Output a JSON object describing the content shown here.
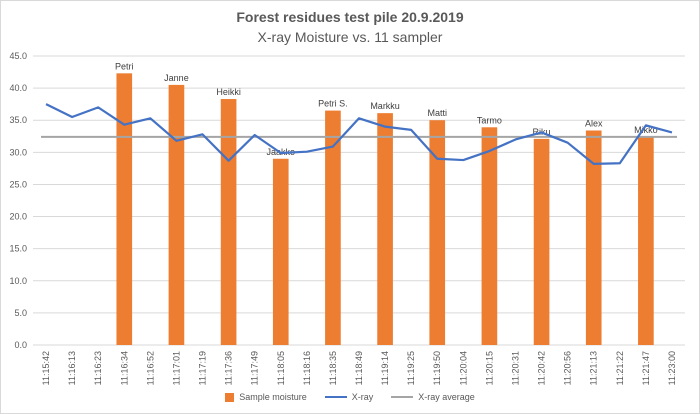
{
  "chart_data": {
    "type": "bar",
    "title": "Forest residues test pile 20.9.2019",
    "subtitle": "X-ray Moisture vs. 11 sampler",
    "categories": [
      "11:15:42",
      "11:16:13",
      "11:16:23",
      "11:16:34",
      "11:16:52",
      "11:17:01",
      "11:17:19",
      "11:17:36",
      "11:17:49",
      "11:18:05",
      "11:18:16",
      "11:18:35",
      "11:18:49",
      "11:19:14",
      "11:19:25",
      "11:19:50",
      "11:20:04",
      "11:20:15",
      "11:20:31",
      "11:20:42",
      "11:20:56",
      "11:21:13",
      "11:21:22",
      "11:21:47",
      "11:23:00"
    ],
    "ylim": [
      0,
      45
    ],
    "yticks": [
      0,
      5,
      10,
      15,
      20,
      25,
      30,
      35,
      40,
      45
    ],
    "ytick_labels": [
      "0.0",
      "5.0",
      "10.0",
      "15.0",
      "20.0",
      "25.0",
      "30.0",
      "35.0",
      "40.0",
      "45.0"
    ],
    "grid": true,
    "legend_position": "bottom",
    "series": [
      {
        "name": "Sample moisture",
        "type": "bar",
        "color": "#ed7d31",
        "values": [
          null,
          null,
          null,
          42.3,
          null,
          40.5,
          null,
          38.3,
          null,
          29.0,
          null,
          36.5,
          null,
          36.1,
          null,
          35.0,
          null,
          33.9,
          null,
          32.1,
          null,
          33.4,
          null,
          32.4,
          null
        ],
        "labels": [
          null,
          null,
          null,
          "Petri",
          null,
          "Janne",
          null,
          "Heikki",
          null,
          "Jaakko",
          null,
          "Petri S.",
          null,
          "Markku",
          null,
          "Matti",
          null,
          "Tarmo",
          null,
          "Riku",
          null,
          "Alex",
          null,
          "Mikko",
          null
        ]
      },
      {
        "name": "X-ray",
        "type": "line",
        "color": "#4472c4",
        "values": [
          37.5,
          35.5,
          37.0,
          34.3,
          35.3,
          31.8,
          32.8,
          28.7,
          32.7,
          29.9,
          30.1,
          30.9,
          35.3,
          34.0,
          33.5,
          29.0,
          28.8,
          30.2,
          32.0,
          33.1,
          31.5,
          28.2,
          28.3,
          34.2,
          33.1
        ]
      },
      {
        "name": "X-ray average",
        "type": "line",
        "color": "#a5a5a5",
        "values": [
          32.4,
          32.4,
          32.4,
          32.4,
          32.4,
          32.4,
          32.4,
          32.4,
          32.4,
          32.4,
          32.4,
          32.4,
          32.4,
          32.4,
          32.4,
          32.4,
          32.4,
          32.4,
          32.4,
          32.4,
          32.4,
          32.4,
          32.4,
          32.4,
          32.4
        ]
      }
    ]
  }
}
